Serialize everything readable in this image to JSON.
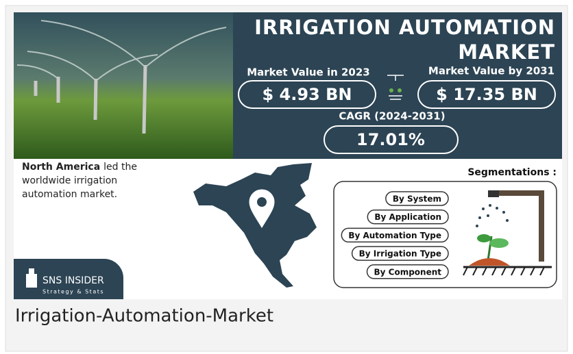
{
  "image": {
    "title_lines": [
      "IRRIGATION AUTOMATION",
      "MARKET"
    ],
    "stats": [
      {
        "label": "Market Value in 2023",
        "value": "$ 4.93 BN"
      },
      {
        "label": "Market Value by 2031",
        "value": "$ 17.35 BN"
      },
      {
        "label": "CAGR (2024-2031)",
        "value": "17.01%"
      }
    ],
    "region_note": {
      "bold": "North America",
      "text_lines": [
        "led the",
        "worldwide irrigation",
        "automation market."
      ]
    },
    "segmentations": {
      "heading": "Segmentations :",
      "items": [
        "By System",
        "By Application",
        "By Automation Type",
        "By Irrigation Type",
        "By Component"
      ]
    },
    "logo": {
      "name": "SNS INSIDER",
      "tagline": "Strategy & Stats"
    }
  },
  "caption": "Irrigation-Automation-Market"
}
